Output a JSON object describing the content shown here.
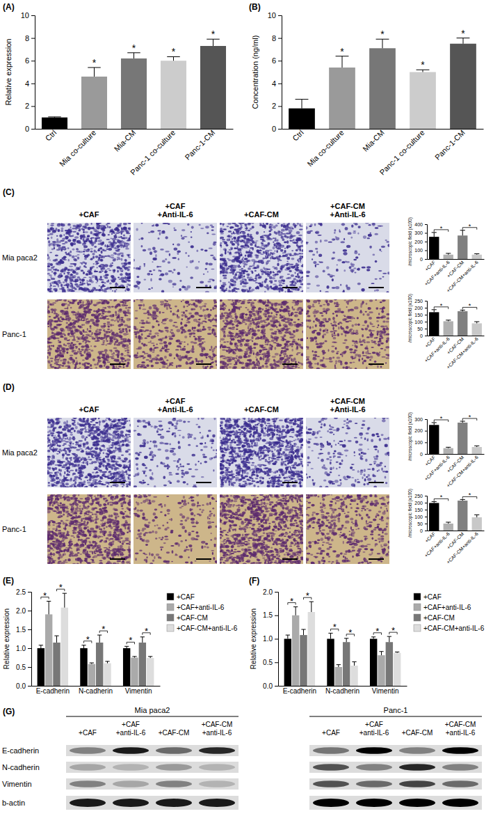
{
  "chart_data": [
    {
      "type": "bar",
      "title": "(A)",
      "ylabel": "Relative expression",
      "categories": [
        "Ctrl",
        "Mia co-culture",
        "Mia-CM",
        "Panc-1 co-culture",
        "Panc-1-CM"
      ],
      "values": [
        1,
        4.6,
        6.2,
        6.0,
        7.3
      ],
      "errors": [
        0.05,
        0.8,
        0.5,
        0.35,
        0.6
      ],
      "colors": [
        "#000000",
        "#9a9a9a",
        "#777777",
        "#cccccc",
        "#555555"
      ],
      "significance": [
        null,
        "*",
        "*",
        "*",
        "*"
      ],
      "ylim": [
        0,
        10
      ],
      "yticks": [
        0,
        2,
        4,
        6,
        8,
        10
      ]
    },
    {
      "type": "bar",
      "title": "(B)",
      "ylabel": "Concentration (ng/ml)",
      "categories": [
        "Ctrl",
        "Mia co-culture",
        "Mia-CM",
        "Panc-1 co-culture",
        "Panc-1-CM"
      ],
      "values": [
        1.8,
        5.4,
        7.1,
        5.0,
        7.5
      ],
      "errors": [
        0.8,
        1.0,
        0.8,
        0.2,
        0.5
      ],
      "colors": [
        "#000000",
        "#9a9a9a",
        "#777777",
        "#cccccc",
        "#555555"
      ],
      "significance": [
        null,
        "*",
        "*",
        "*",
        "*"
      ],
      "ylim": [
        0,
        10
      ],
      "yticks": [
        0,
        2,
        4,
        6,
        8,
        10
      ]
    },
    {
      "type": "bar",
      "ylabel": "/microscopic field (x100)",
      "categories": [
        "+CAF",
        "+CAF+anti-IL-6",
        "+CAF-CM",
        "+CAF-CM+anti-IL-6"
      ],
      "values": [
        255,
        50,
        270,
        50
      ],
      "errors": [
        50,
        15,
        60,
        10
      ],
      "colors": [
        "#000000",
        "#b0b0b0",
        "#808080",
        "#c8c8c8"
      ],
      "brackets": [
        {
          "from": "+CAF",
          "to": "+CAF+anti-IL-6",
          "label": "*"
        },
        {
          "from": "+CAF-CM",
          "to": "+CAF-CM+anti-IL-6",
          "label": "*"
        }
      ],
      "ylim": [
        0,
        400
      ],
      "yticks": [
        0,
        100,
        200,
        300,
        400
      ]
    },
    {
      "type": "bar",
      "ylabel": "/microscopic field (x100)",
      "categories": [
        "+CAF",
        "+CAF+anti-IL-6",
        "+CAF-CM",
        "+CAF-CM+anti-IL-6"
      ],
      "values": [
        168,
        103,
        175,
        88
      ],
      "errors": [
        18,
        8,
        8,
        12
      ],
      "colors": [
        "#000000",
        "#b0b0b0",
        "#808080",
        "#c8c8c8"
      ],
      "brackets": [
        {
          "from": "+CAF",
          "to": "+CAF+anti-IL-6",
          "label": "*"
        },
        {
          "from": "+CAF-CM",
          "to": "+CAF-CM+anti-IL-6",
          "label": "*"
        }
      ],
      "ylim": [
        0,
        250
      ],
      "yticks": [
        0,
        50,
        100,
        150,
        200,
        250
      ]
    },
    {
      "type": "bar",
      "ylabel": "/microscopic field (x100)",
      "categories": [
        "+CAF",
        "+CAF+anti-IL-6",
        "+CAF-CM",
        "+CAF-CM+anti-IL-6"
      ],
      "values": [
        250,
        50,
        270,
        60
      ],
      "errors": [
        20,
        8,
        12,
        10
      ],
      "colors": [
        "#000000",
        "#b0b0b0",
        "#808080",
        "#c8c8c8"
      ],
      "brackets": [
        {
          "from": "+CAF",
          "to": "+CAF+anti-IL-6",
          "label": "*"
        },
        {
          "from": "+CAF-CM",
          "to": "+CAF-CM+anti-IL-6",
          "label": "*"
        }
      ],
      "ylim": [
        0,
        300
      ],
      "yticks": [
        0,
        100,
        200,
        300
      ]
    },
    {
      "type": "bar",
      "ylabel": "/microscopic field (x100)",
      "categories": [
        "+CAF",
        "+CAF+anti-IL-6",
        "+CAF-CM",
        "+CAF-CM+anti-IL-6"
      ],
      "values": [
        198,
        50,
        215,
        95
      ],
      "errors": [
        10,
        10,
        8,
        18
      ],
      "colors": [
        "#000000",
        "#b0b0b0",
        "#808080",
        "#c8c8c8"
      ],
      "brackets": [
        {
          "from": "+CAF",
          "to": "+CAF+anti-IL-6",
          "label": "*"
        },
        {
          "from": "+CAF-CM",
          "to": "+CAF-CM+anti-IL-6",
          "label": "*"
        }
      ],
      "ylim": [
        0,
        250
      ],
      "yticks": [
        0,
        50,
        100,
        150,
        200,
        250
      ]
    },
    {
      "type": "bar",
      "title": "(E)",
      "ylabel": "Relative expression",
      "categories": [
        "E-cadherin",
        "N-cadherin",
        "Vimentin"
      ],
      "series": [
        {
          "name": "+CAF",
          "color": "#000000",
          "values": [
            1.0,
            1.0,
            1.0
          ],
          "errors": [
            0.08,
            0.08,
            0.05
          ]
        },
        {
          "name": "+CAF+anti-IL-6",
          "color": "#aaaaaa",
          "values": [
            1.9,
            0.58,
            0.75
          ],
          "errors": [
            0.35,
            0.03,
            0.03
          ]
        },
        {
          "name": "+CAF-CM",
          "color": "#777777",
          "values": [
            1.15,
            1.15,
            1.15
          ],
          "errors": [
            0.18,
            0.2,
            0.15
          ]
        },
        {
          "name": "+CAF-CM+anti-IL-6",
          "color": "#dddddd",
          "values": [
            2.08,
            0.6,
            0.74
          ],
          "errors": [
            0.38,
            0.05,
            0.04
          ]
        }
      ],
      "brackets": [
        {
          "from": "+CAF",
          "to": "+CAF+anti-IL-6",
          "label": "*"
        },
        {
          "from": "+CAF-CM",
          "to": "+CAF-CM+anti-IL-6",
          "label": "*"
        }
      ],
      "legend": "top-right",
      "ylim": [
        0,
        2.5
      ],
      "yticks": [
        {
          "value": 0,
          "label": "0.0"
        },
        {
          "value": 0.5,
          "label": "0.5"
        },
        {
          "value": 1,
          "label": "1.0"
        },
        {
          "value": 1.5,
          "label": "1.5"
        },
        {
          "value": 2,
          "label": "2.0"
        },
        {
          "value": 2.5,
          "label": "2.5"
        }
      ]
    },
    {
      "type": "bar",
      "title": "(F)",
      "ylabel": "Relative expression",
      "categories": [
        "E-cadherin",
        "N-cadherin",
        "Vimentin"
      ],
      "series": [
        {
          "name": "+CAF",
          "color": "#000000",
          "values": [
            1.0,
            1.0,
            1.0
          ],
          "errors": [
            0.08,
            0.12,
            0.04
          ]
        },
        {
          "name": "+CAF+anti-IL-6",
          "color": "#aaaaaa",
          "values": [
            1.5,
            0.4,
            0.65
          ],
          "errors": [
            0.18,
            0.05,
            0.08
          ]
        },
        {
          "name": "+CAF-CM",
          "color": "#777777",
          "values": [
            1.08,
            0.93,
            0.93
          ],
          "errors": [
            0.12,
            0.08,
            0.12
          ]
        },
        {
          "name": "+CAF-CM+anti-IL-6",
          "color": "#dddddd",
          "values": [
            1.57,
            0.43,
            0.7
          ],
          "errors": [
            0.22,
            0.08,
            0.02
          ]
        }
      ],
      "brackets": [
        {
          "from": "+CAF",
          "to": "+CAF+anti-IL-6",
          "label": "*"
        },
        {
          "from": "+CAF-CM",
          "to": "+CAF-CM+anti-IL-6",
          "label": "*"
        }
      ],
      "legend": "top-right",
      "ylim": [
        0,
        2
      ],
      "yticks": [
        {
          "value": 0,
          "label": "0.0"
        },
        {
          "value": 0.5,
          "label": "0.5"
        },
        {
          "value": 1,
          "label": "1.0"
        },
        {
          "value": 1.5,
          "label": "1.5"
        },
        {
          "value": 2,
          "label": "2.0"
        }
      ]
    }
  ],
  "image_panels": [
    {
      "title": "(C)",
      "columns": [
        [
          "+CAF"
        ],
        [
          "+CAF",
          "+Anti-IL-6"
        ],
        [
          "+CAF-CM"
        ],
        [
          "+CAF-CM",
          "+Anti-IL-6"
        ]
      ],
      "rows": [
        "Mia paca2",
        "Panc-1"
      ]
    },
    {
      "title": "(D)",
      "columns": [
        [
          "+CAF"
        ],
        [
          "+CAF",
          "+Anti-IL-6"
        ],
        [
          "+CAF-CM"
        ],
        [
          "+CAF-CM",
          "+Anti-IL-6"
        ]
      ],
      "rows": [
        "Mia paca2",
        "Panc-1"
      ]
    }
  ],
  "blot": {
    "title": "(G)",
    "rows": [
      "E-cadherin",
      "N-cadherin",
      "Vimentin",
      "b-actin"
    ],
    "groups": [
      {
        "name": "Mia paca2",
        "lanes": [
          [
            "+CAF"
          ],
          [
            "+CAF",
            "+anti-IL-6"
          ],
          [
            "+CAF-CM"
          ],
          [
            "+CAF-CM",
            "+anti-IL-6"
          ]
        ],
        "intensity": [
          [
            0.5,
            0.9,
            0.6,
            0.85
          ],
          [
            0.35,
            0.3,
            0.4,
            0.3
          ],
          [
            0.5,
            0.35,
            0.5,
            0.3
          ],
          [
            0.9,
            0.9,
            0.9,
            0.9
          ]
        ]
      },
      {
        "name": "Panc-1",
        "lanes": [
          [
            "+CAF"
          ],
          [
            "+CAF",
            "+anti-IL-6"
          ],
          [
            "+CAF-CM"
          ],
          [
            "+CAF-CM",
            "+anti-IL-6"
          ]
        ],
        "intensity": [
          [
            0.55,
            1,
            0.5,
            1
          ],
          [
            0.7,
            0.5,
            0.85,
            0.5
          ],
          [
            0.7,
            0.6,
            0.75,
            0.6
          ],
          [
            1,
            1,
            1,
            1
          ]
        ]
      }
    ]
  }
}
